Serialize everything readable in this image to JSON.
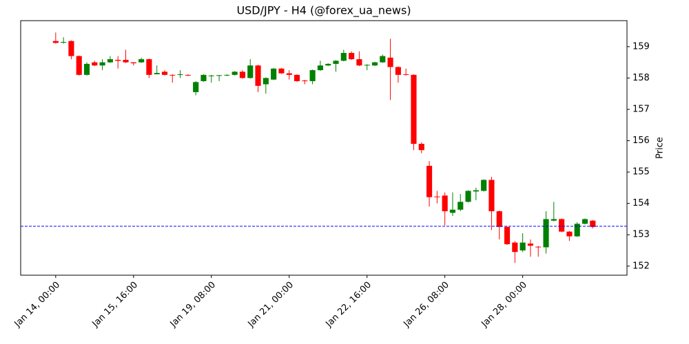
{
  "chart_data": {
    "type": "candlestick",
    "title": "USD/JPY - H4 (@forex_ua_news)",
    "y_label": "Price",
    "categories": [
      "Jan 14, 00:00",
      null,
      null,
      null,
      null,
      null,
      null,
      null,
      null,
      null,
      "Jan 15, 16:00",
      null,
      null,
      null,
      null,
      null,
      null,
      null,
      null,
      null,
      "Jan 19, 08:00",
      null,
      null,
      null,
      null,
      null,
      null,
      null,
      null,
      null,
      "Jan 21, 00:00",
      null,
      null,
      null,
      null,
      null,
      null,
      null,
      null,
      null,
      "Jan 22, 16:00",
      null,
      null,
      null,
      null,
      null,
      null,
      null,
      null,
      null,
      "Jan 26, 08:00",
      null,
      null,
      null,
      null,
      null,
      null,
      null,
      null,
      null,
      "Jan 28, 00:00",
      null,
      null,
      null,
      null,
      null,
      null,
      null,
      null,
      null
    ],
    "open": [
      159.18,
      159.13,
      159.18,
      158.7,
      158.1,
      158.5,
      158.4,
      158.5,
      158.58,
      158.58,
      158.5,
      158.5,
      158.6,
      158.12,
      158.2,
      158.1,
      158.1,
      158.1,
      157.55,
      157.9,
      158.06,
      158.07,
      158.08,
      158.1,
      158.2,
      158.0,
      158.4,
      157.8,
      157.95,
      158.3,
      158.15,
      158.1,
      157.92,
      157.9,
      158.25,
      158.4,
      158.45,
      158.55,
      158.8,
      158.6,
      158.4,
      158.4,
      158.5,
      158.65,
      158.35,
      158.12,
      158.1,
      155.9,
      155.2,
      154.22,
      154.25,
      153.7,
      153.8,
      154.05,
      154.38,
      154.4,
      154.75,
      153.75,
      153.25,
      152.75,
      152.5,
      152.72,
      152.62,
      152.6,
      153.45,
      153.5,
      153.1,
      152.95,
      153.35,
      153.45
    ],
    "high": [
      159.45,
      159.3,
      159.2,
      158.72,
      158.5,
      158.55,
      158.6,
      158.7,
      158.7,
      158.9,
      158.5,
      158.65,
      158.62,
      158.4,
      158.25,
      158.12,
      158.25,
      158.12,
      157.9,
      158.12,
      158.1,
      158.1,
      158.12,
      158.22,
      158.25,
      158.6,
      158.42,
      158.02,
      158.32,
      158.32,
      158.25,
      158.12,
      157.94,
      158.27,
      158.55,
      158.47,
      158.57,
      158.9,
      158.85,
      158.85,
      158.44,
      158.52,
      158.75,
      159.25,
      158.37,
      158.3,
      158.12,
      155.95,
      155.35,
      154.4,
      154.35,
      154.35,
      154.3,
      154.42,
      154.5,
      154.77,
      154.85,
      153.77,
      153.27,
      152.8,
      153.05,
      152.85,
      152.64,
      153.75,
      154.05,
      153.52,
      153.12,
      153.4,
      153.52,
      153.47
    ],
    "low": [
      159.1,
      159.1,
      158.6,
      158.08,
      158.08,
      158.38,
      158.25,
      158.48,
      158.3,
      158.48,
      158.4,
      158.48,
      158.0,
      158.12,
      158.08,
      157.85,
      158.0,
      158.06,
      157.45,
      157.88,
      157.85,
      157.9,
      158.06,
      158.08,
      157.98,
      157.98,
      157.55,
      157.5,
      157.93,
      158.13,
      157.95,
      157.88,
      157.8,
      157.8,
      158.23,
      158.38,
      158.2,
      158.53,
      158.58,
      158.38,
      158.25,
      158.38,
      158.48,
      157.3,
      157.85,
      158.08,
      155.7,
      155.6,
      153.9,
      154.0,
      153.3,
      153.6,
      153.75,
      154.03,
      154.1,
      154.38,
      153.15,
      152.85,
      152.68,
      152.1,
      152.45,
      152.3,
      152.3,
      152.4,
      153.43,
      153.08,
      152.8,
      152.93,
      153.33,
      153.2
    ],
    "close": [
      159.12,
      159.15,
      158.7,
      158.1,
      158.45,
      158.4,
      158.5,
      158.6,
      158.55,
      158.5,
      158.47,
      158.6,
      158.1,
      158.16,
      158.1,
      158.08,
      158.12,
      158.08,
      157.87,
      158.1,
      158.08,
      158.09,
      158.1,
      158.2,
      158.0,
      158.4,
      157.75,
      158.0,
      158.3,
      158.15,
      158.1,
      157.9,
      157.9,
      158.25,
      158.4,
      158.45,
      158.55,
      158.8,
      158.6,
      158.4,
      158.42,
      158.5,
      158.7,
      158.35,
      158.1,
      158.1,
      155.9,
      155.7,
      154.2,
      154.2,
      153.75,
      153.8,
      154.05,
      154.4,
      154.42,
      154.75,
      153.75,
      153.25,
      152.7,
      152.45,
      152.75,
      152.65,
      152.6,
      153.5,
      153.5,
      153.1,
      152.95,
      153.35,
      153.5,
      153.25
    ],
    "up_color": "#008000",
    "down_color": "#ff0000",
    "hline": {
      "value": 153.27,
      "color": "#0000ff"
    },
    "ylim": [
      151.71,
      159.83
    ],
    "yticks": [
      152,
      153,
      154,
      155,
      156,
      157,
      158,
      159
    ]
  }
}
